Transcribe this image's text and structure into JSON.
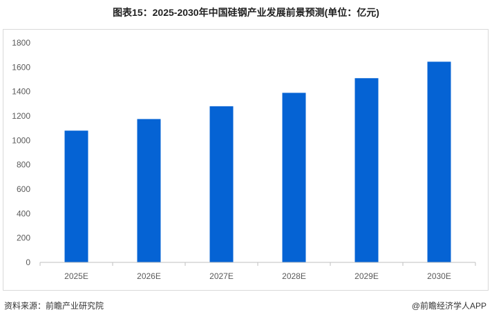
{
  "title": "图表15：2025-2030年中国硅钢产业发展前景预测(单位：亿元)",
  "chart_data": {
    "type": "bar",
    "categories": [
      "2025E",
      "2026E",
      "2027E",
      "2028E",
      "2029E",
      "2030E"
    ],
    "values": [
      1080,
      1175,
      1280,
      1390,
      1510,
      1645
    ],
    "ylim": [
      0,
      1800
    ],
    "yticks": [
      0,
      200,
      400,
      600,
      800,
      1000,
      1200,
      1400,
      1600,
      1800
    ],
    "grid": false,
    "bar_color": "#0563D4"
  },
  "footer": {
    "source": "资料来源：前瞻产业研究院",
    "brand": "@前瞻经济学人APP"
  }
}
